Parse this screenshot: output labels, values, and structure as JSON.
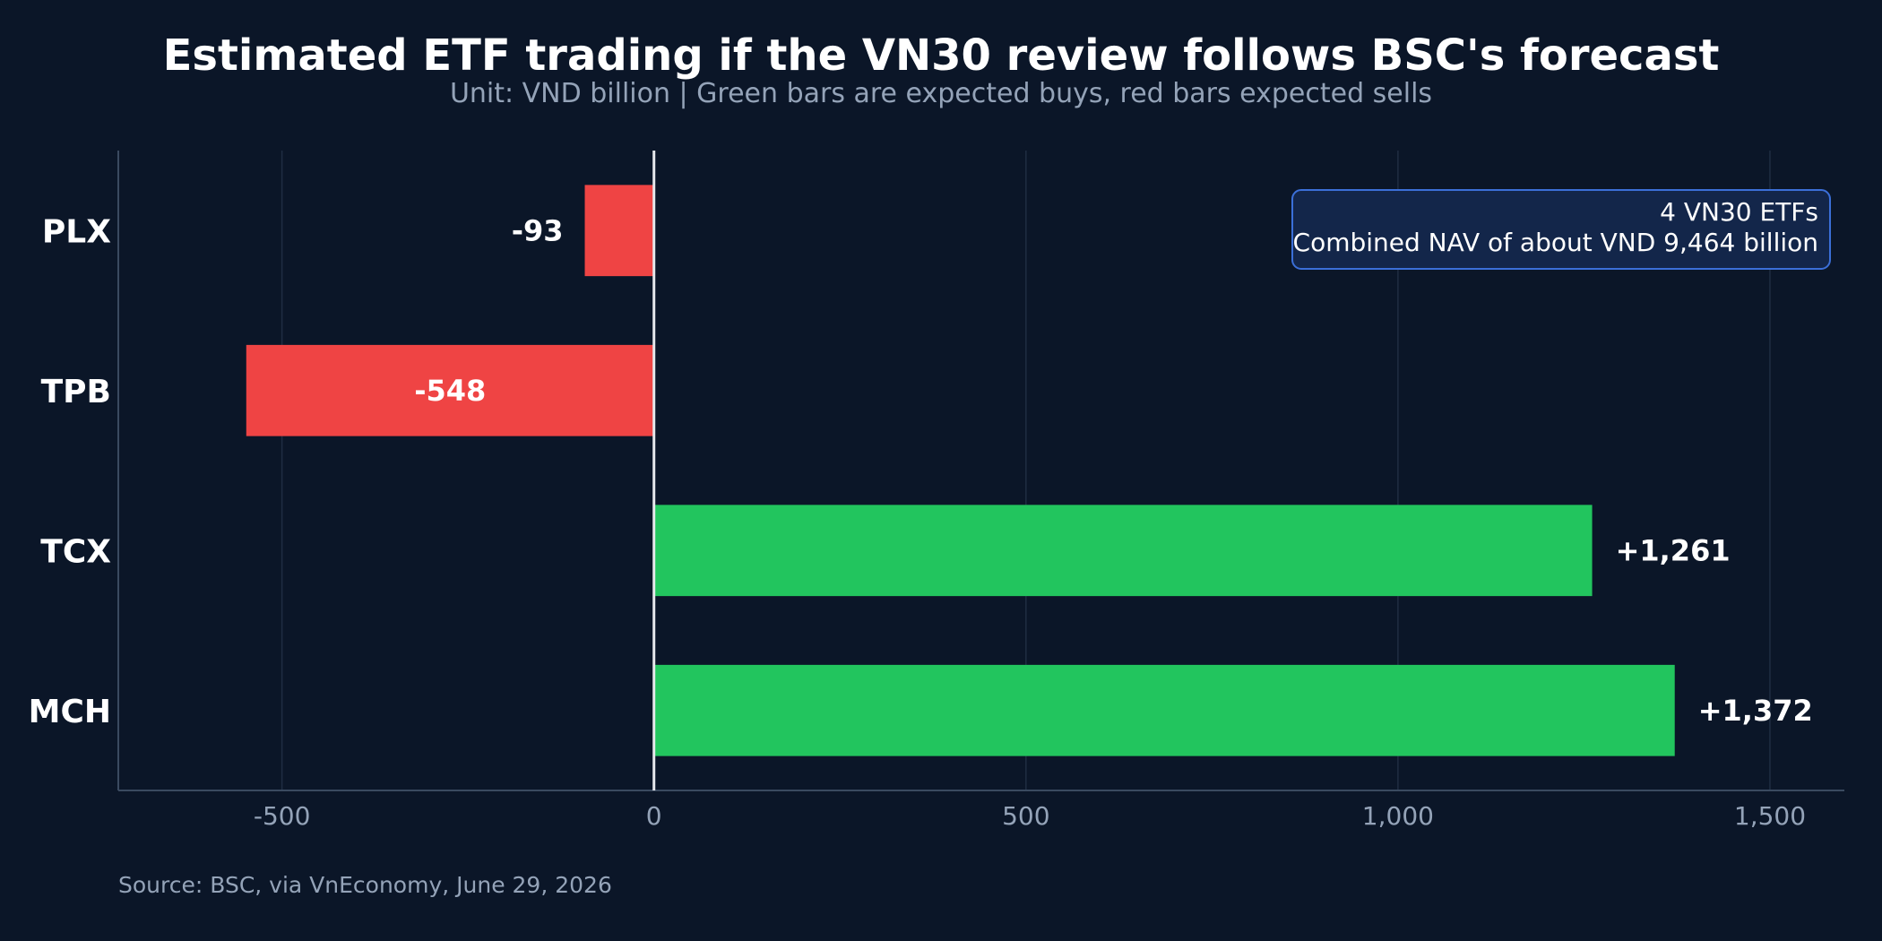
{
  "chart_data": {
    "type": "bar",
    "orientation": "horizontal",
    "title": "Estimated ETF trading if the VN30 review follows BSC's forecast",
    "subtitle": "Unit: VND billion | Green bars are expected buys, red bars expected sells",
    "categories": [
      "PLX",
      "TPB",
      "TCX",
      "MCH"
    ],
    "values": [
      -93,
      -548,
      1261,
      1372
    ],
    "value_labels": [
      "-93",
      "-548",
      "+1,261",
      "+1,372"
    ],
    "xlim": [
      -720,
      1600
    ],
    "xticks": [
      -500,
      0,
      500,
      1000,
      1500
    ],
    "xtick_labels": [
      "-500",
      "0",
      "500",
      "1,000",
      "1,500"
    ],
    "grid": true,
    "annotation": {
      "line1": "4 VN30 ETFs",
      "line2": "Combined NAV of about VND 9,464 billion",
      "placement": "top-right"
    },
    "source": "Source: BSC, via VnEconomy, June 29, 2026"
  },
  "colors": {
    "background": "#0b1628",
    "buy": "#22c55e",
    "sell": "#ef4444",
    "grid": "#1f2d42",
    "axis": "#3a4a60",
    "zero_line": "#e5e7eb",
    "annotation_fill": "#13264a",
    "annotation_border": "#3b6fd8"
  }
}
